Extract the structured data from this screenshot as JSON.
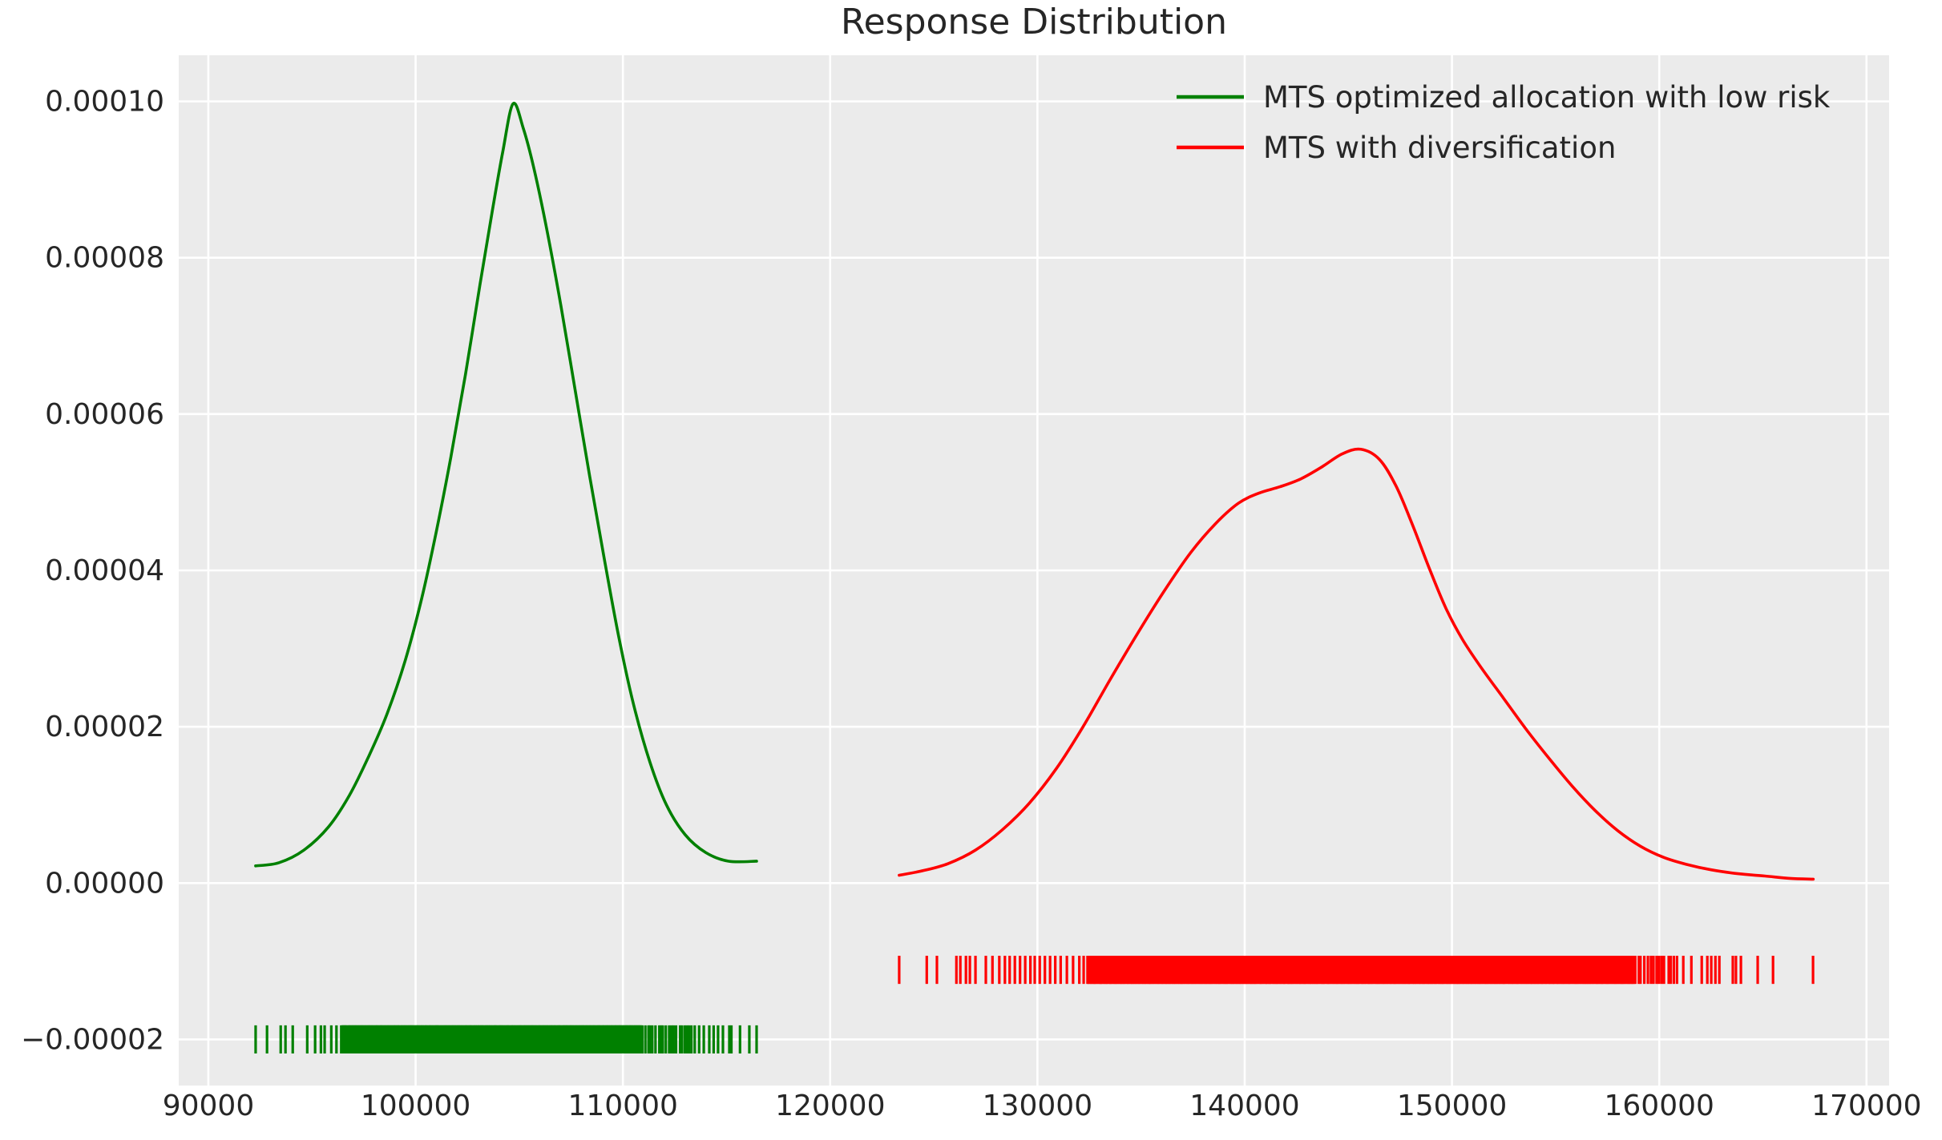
{
  "title": "Response Distribution",
  "legend": {
    "position": "upper right",
    "items": [
      {
        "label": "MTS optimized allocation with low risk",
        "color": "#008000"
      },
      {
        "label": "MTS with diversification",
        "color": "#ff0000"
      }
    ]
  },
  "colors": {
    "plot_background": "#ebebeb",
    "grid": "#ffffff",
    "text": "#262626",
    "green_series": "#008000",
    "red_series": "#ff0000"
  },
  "chart_data": {
    "type": "line",
    "title": "Response Distribution",
    "xlabel": "",
    "ylabel": "",
    "grid": true,
    "legend_position": "upper right",
    "xlim": [
      88570,
      171090
    ],
    "ylim": [
      -2.59e-05,
      0.0001059
    ],
    "x_ticks": [
      90000,
      100000,
      110000,
      120000,
      130000,
      140000,
      150000,
      160000,
      170000
    ],
    "x_tick_labels": [
      "90000",
      "100000",
      "110000",
      "120000",
      "130000",
      "140000",
      "150000",
      "160000",
      "170000"
    ],
    "y_ticks": [
      -2e-05,
      0.0,
      2e-05,
      4e-05,
      6e-05,
      8e-05,
      0.0001
    ],
    "y_tick_labels": [
      "−0.00002",
      "0.00000",
      "0.00002",
      "0.00004",
      "0.00006",
      "0.00008",
      "0.00010"
    ],
    "series": [
      {
        "name": "MTS optimized allocation with low risk",
        "color": "#008000",
        "peak": {
          "x": 104700,
          "y": 9.97e-05
        },
        "points": [
          [
            92280,
            2.2e-06
          ],
          [
            93400,
            2.6e-06
          ],
          [
            94600,
            4.2e-06
          ],
          [
            95800,
            7.2e-06
          ],
          [
            96800,
            1.12e-05
          ],
          [
            97700,
            1.6e-05
          ],
          [
            98600,
            2.15e-05
          ],
          [
            99500,
            2.85e-05
          ],
          [
            100300,
            3.65e-05
          ],
          [
            101000,
            4.5e-05
          ],
          [
            101700,
            5.45e-05
          ],
          [
            102400,
            6.5e-05
          ],
          [
            103100,
            7.65e-05
          ],
          [
            103700,
            8.6e-05
          ],
          [
            104200,
            9.35e-05
          ],
          [
            104700,
            9.97e-05
          ],
          [
            105200,
            9.65e-05
          ],
          [
            105700,
            9.15e-05
          ],
          [
            106300,
            8.4e-05
          ],
          [
            107000,
            7.4e-05
          ],
          [
            107700,
            6.3e-05
          ],
          [
            108400,
            5.2e-05
          ],
          [
            109100,
            4.15e-05
          ],
          [
            109800,
            3.15e-05
          ],
          [
            110500,
            2.3e-05
          ],
          [
            111300,
            1.55e-05
          ],
          [
            112100,
            1e-05
          ],
          [
            113000,
            6.2e-06
          ],
          [
            114000,
            3.9e-06
          ],
          [
            115100,
            2.8e-06
          ],
          [
            116450,
            2.8e-06
          ]
        ],
        "rug": {
          "center": -2e-05,
          "half_height": 1.8e-06,
          "sparse": [
            92280,
            92830,
            93490,
            93720,
            94070,
            94770,
            95150,
            95430,
            95610,
            95930,
            96180,
            115650,
            116100,
            116450
          ],
          "dense_segments": [
            {
              "from": 96400,
              "to": 110900,
              "count": 420,
              "seed": 7
            },
            {
              "from": 110900,
              "to": 113400,
              "count": 20,
              "seed": 13
            },
            {
              "from": 113400,
              "to": 115400,
              "count": 9,
              "seed": 21
            }
          ]
        }
      },
      {
        "name": "MTS with diversification",
        "color": "#ff0000",
        "peak": {
          "x": 145600,
          "y": 5.55e-05
        },
        "points": [
          [
            123330,
            1e-06
          ],
          [
            124500,
            1.6e-06
          ],
          [
            125700,
            2.5e-06
          ],
          [
            127000,
            4.2e-06
          ],
          [
            128300,
            6.8e-06
          ],
          [
            129600,
            1.02e-05
          ],
          [
            130900,
            1.46e-05
          ],
          [
            132200,
            2e-05
          ],
          [
            133500,
            2.6e-05
          ],
          [
            134800,
            3.18e-05
          ],
          [
            136100,
            3.73e-05
          ],
          [
            137400,
            4.23e-05
          ],
          [
            138600,
            4.6e-05
          ],
          [
            139700,
            4.86e-05
          ],
          [
            140700,
            4.99e-05
          ],
          [
            141700,
            5.07e-05
          ],
          [
            142700,
            5.17e-05
          ],
          [
            143700,
            5.32e-05
          ],
          [
            144700,
            5.49e-05
          ],
          [
            145600,
            5.55e-05
          ],
          [
            146500,
            5.42e-05
          ],
          [
            147300,
            5.08e-05
          ],
          [
            148100,
            4.58e-05
          ],
          [
            148900,
            4.03e-05
          ],
          [
            149700,
            3.52e-05
          ],
          [
            150500,
            3.12e-05
          ],
          [
            151400,
            2.76e-05
          ],
          [
            152500,
            2.36e-05
          ],
          [
            153600,
            1.96e-05
          ],
          [
            154700,
            1.59e-05
          ],
          [
            155800,
            1.24e-05
          ],
          [
            156900,
            9.3e-06
          ],
          [
            158000,
            6.7e-06
          ],
          [
            159100,
            4.7e-06
          ],
          [
            160200,
            3.3e-06
          ],
          [
            161300,
            2.4e-06
          ],
          [
            162500,
            1.7e-06
          ],
          [
            163800,
            1.2e-06
          ],
          [
            165100,
            9e-07
          ],
          [
            166300,
            6e-07
          ],
          [
            167430,
            5e-07
          ]
        ],
        "rug": {
          "center": -1.11e-05,
          "half_height": 1.8e-06,
          "sparse": [
            123330,
            124660,
            125150,
            126090,
            126280,
            126550,
            126740,
            127010,
            127510,
            127830,
            128160,
            128430,
            128660,
            128910,
            129160,
            129410,
            129660,
            129870,
            130110,
            130360,
            130610,
            130860,
            131120,
            131420,
            131720,
            132020,
            132230,
            161160,
            161550,
            162050,
            162320,
            162510,
            162710,
            162900,
            163550,
            163700,
            163940,
            164750,
            165490,
            167420
          ],
          "dense_segments": [
            {
              "from": 132400,
              "to": 158800,
              "count": 520,
              "seed": 31
            },
            {
              "from": 158800,
              "to": 160900,
              "count": 15,
              "seed": 47
            }
          ]
        }
      }
    ]
  }
}
